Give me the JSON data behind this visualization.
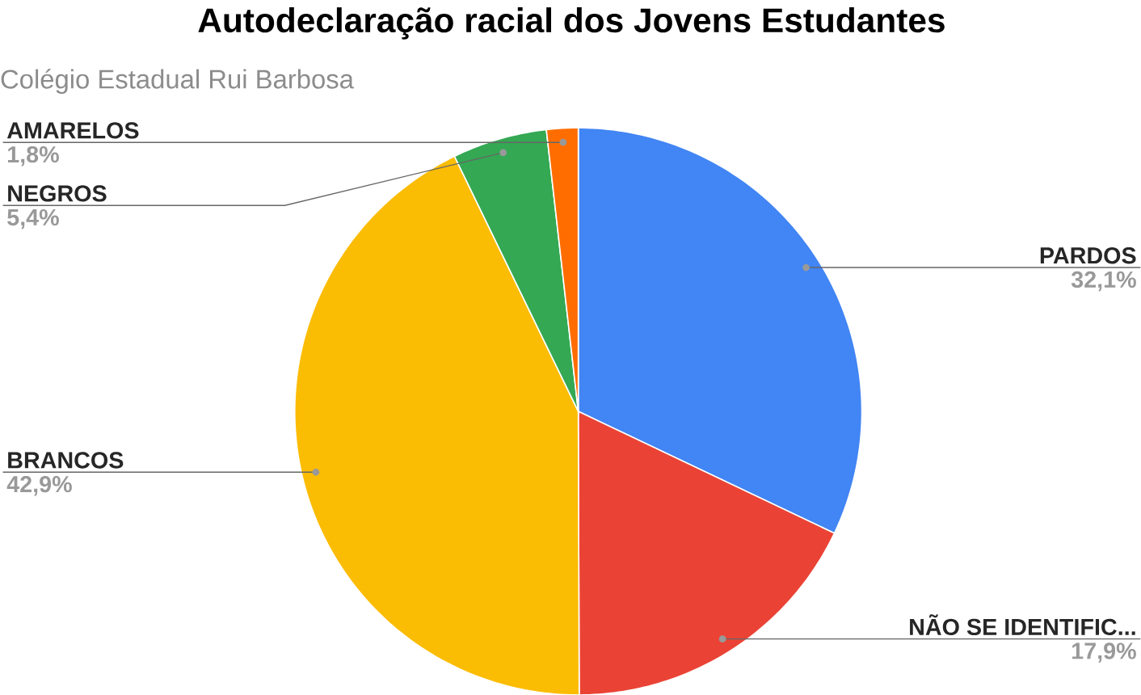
{
  "chart_data": {
    "type": "pie",
    "title": "Autodeclaração racial dos Jovens Estudantes",
    "subtitle": "Colégio Estadual Rui Barbosa",
    "categories": [
      "PARDOS",
      "NÃO SE IDENTIFIC...",
      "BRANCOS",
      "NEGROS",
      "AMARELOS"
    ],
    "values": [
      32.1,
      17.9,
      42.9,
      5.4,
      1.8
    ],
    "colors": [
      "#4285f4",
      "#ea4335",
      "#fbbc04",
      "#34a853",
      "#ff6d01"
    ],
    "value_labels": [
      "32,1%",
      "17,9%",
      "42,9%",
      "5,4%",
      "1,8%"
    ]
  }
}
